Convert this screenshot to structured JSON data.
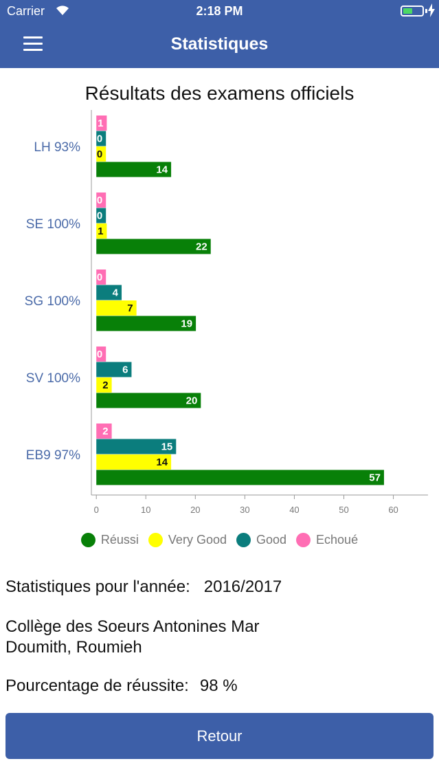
{
  "status_bar": {
    "carrier": "Carrier",
    "time": "2:18 PM",
    "battery_level": 0.5
  },
  "nav": {
    "title": "Statistiques",
    "menu_icon": "hamburger-menu-icon"
  },
  "chart_data": {
    "type": "bar",
    "orientation": "horizontal",
    "title": "Résultats des examens officiels",
    "categories": [
      "LH 93%",
      "SE 100%",
      "SG 100%",
      "SV 100%",
      "EB9 97%"
    ],
    "series": [
      {
        "name": "Réussi",
        "color": "#088008",
        "values": [
          14,
          22,
          19,
          20,
          57
        ]
      },
      {
        "name": "Very Good",
        "color": "#ffff00",
        "values": [
          0,
          1,
          7,
          2,
          14
        ]
      },
      {
        "name": "Good",
        "color": "#0b7d7d",
        "values": [
          0,
          0,
          4,
          6,
          15
        ]
      },
      {
        "name": "Echoué",
        "color": "#ff6eb4",
        "values": [
          1,
          0,
          0,
          0,
          2
        ]
      }
    ],
    "x_ticks": [
      0,
      10,
      20,
      30,
      40,
      50,
      60
    ],
    "xlim": [
      -1,
      67
    ],
    "legend_position": "bottom",
    "grid": false
  },
  "info": {
    "year_label": "Statistiques pour l'année:",
    "year_value": "2016/2017",
    "school_name": "Collège des Soeurs Antonines Mar Doumith, Roumieh",
    "success_label": "Pourcentage de réussite:",
    "success_value": "98 %"
  },
  "button": {
    "label": "Retour"
  }
}
